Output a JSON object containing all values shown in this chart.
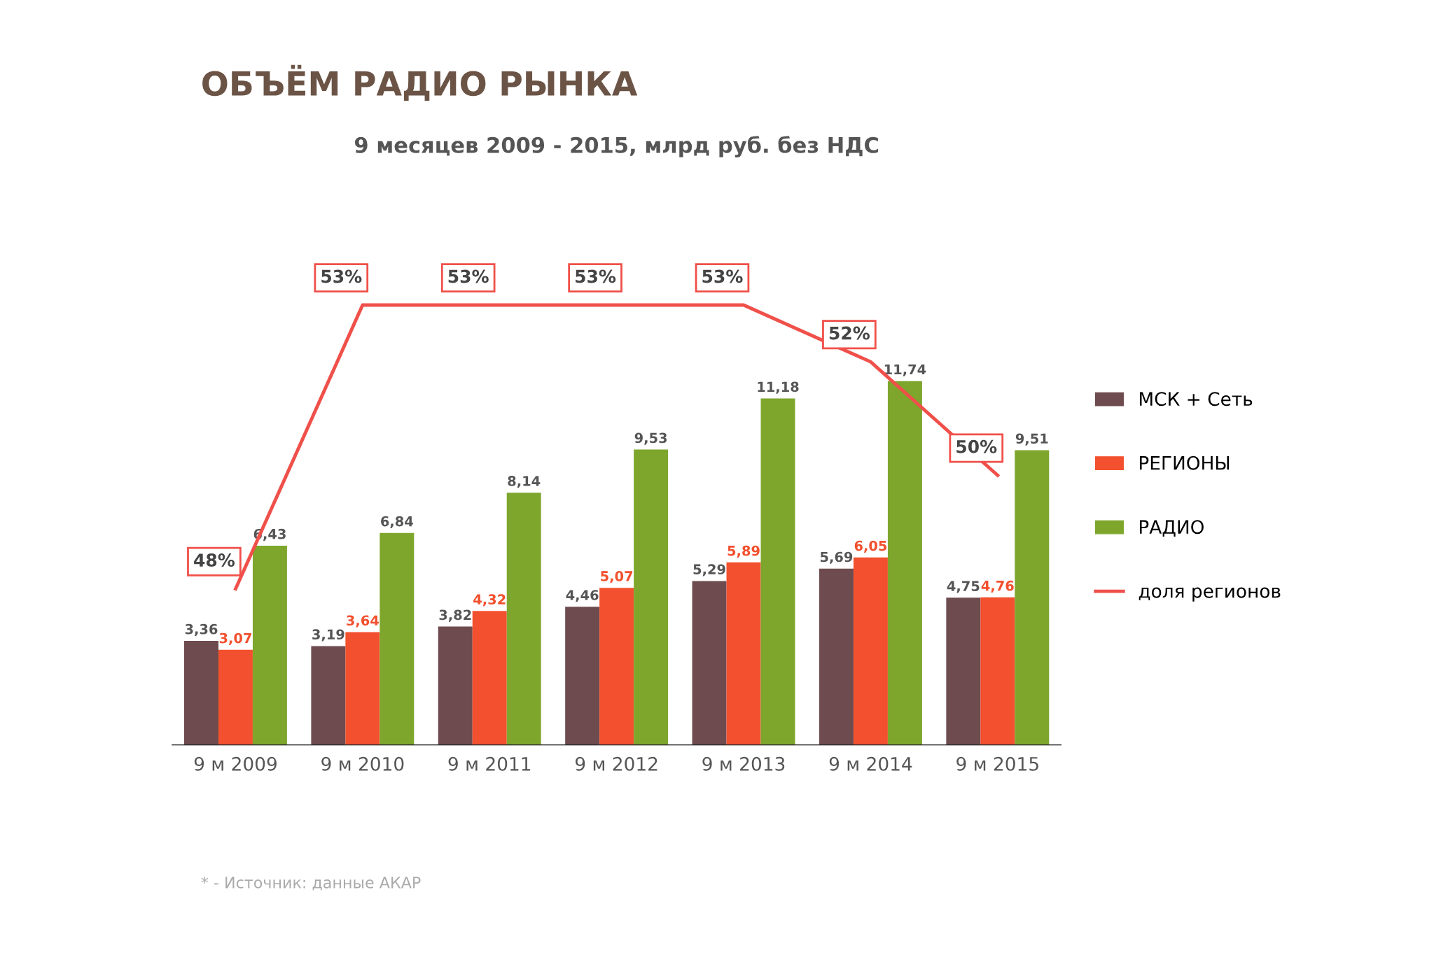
{
  "chart_data": {
    "type": "bar",
    "title": "ОБЪЁМ РАДИО РЫНКА",
    "subtitle": "9 месяцев 2009 - 2015, млрд руб. без НДС",
    "categories": [
      "9 м 2009",
      "9 м 2010",
      "9 м 2011",
      "9 м 2012",
      "9 м 2013",
      "9 м 2014",
      "9 м 2015"
    ],
    "series": [
      {
        "name": "МСК + Сеть",
        "color": "#6e4b4e",
        "values": [
          3.36,
          3.19,
          3.82,
          4.46,
          5.29,
          5.69,
          4.75
        ],
        "value_labels": [
          "3,36",
          "3,19",
          "3,82",
          "4,46",
          "5,29",
          "5,69",
          "4,75"
        ]
      },
      {
        "name": "РЕГИОНЫ",
        "color": "#f2502e",
        "values": [
          3.07,
          3.64,
          4.32,
          5.07,
          5.89,
          6.05,
          4.76
        ],
        "value_labels": [
          "3,07",
          "3,64",
          "4,32",
          "5,07",
          "5,89",
          "6,05",
          "4,76"
        ]
      },
      {
        "name": "РАДИО",
        "color": "#7ea62c",
        "values": [
          6.43,
          6.84,
          8.14,
          9.53,
          11.18,
          11.74,
          9.51
        ],
        "value_labels": [
          "6,43",
          "6,84",
          "8,14",
          "9,53",
          "11,18",
          "11,74",
          "9,51"
        ]
      },
      {
        "name": "доля регионов",
        "type": "line",
        "axis": "y2",
        "color": "#f0504a",
        "values": [
          48,
          53,
          53,
          53,
          53,
          52,
          50
        ],
        "value_labels": [
          "48%",
          "53%",
          "53%",
          "53%",
          "53%",
          "52%",
          "50%"
        ]
      }
    ],
    "tick_labels": "x",
    "grid": false,
    "legend": "right",
    "annotations": [
      "* - Источник: данные АКАР"
    ]
  }
}
